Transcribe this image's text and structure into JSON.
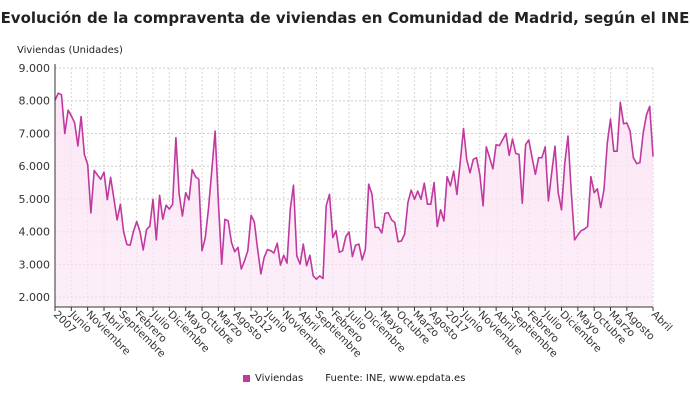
{
  "chart_data": {
    "type": "area",
    "title": "Evolución de la compraventa de viviendas en Comunidad de Madrid, según el INE",
    "ylabel": "Viviendas (Unidades)",
    "xlabel": "",
    "ylim": [
      1700,
      9000
    ],
    "y_ticks": [
      "2.000",
      "3.000",
      "4.000",
      "5.000",
      "6.000",
      "7.000",
      "8.000",
      "9.000"
    ],
    "y_tick_values": [
      2000,
      3000,
      4000,
      5000,
      6000,
      7000,
      8000,
      9000
    ],
    "x_tick_labels": [
      "2007",
      "Junio",
      "Noviembre",
      "Abril",
      "Septiembre",
      "Febrero",
      "Julio",
      "Diciembre",
      "Mayo",
      "Octubre",
      "Marzo",
      "Agosto",
      "2012",
      "Junio",
      "Noviembre",
      "Abril",
      "Septiembre",
      "Febrero",
      "Julio",
      "Diciembre",
      "Mayo",
      "Octubre",
      "Marzo",
      "Agosto",
      "2017",
      "Junio",
      "Noviembre",
      "Abril",
      "Septiembre",
      "Febrero",
      "Julio",
      "Diciembre",
      "Mayo",
      "Octubre",
      "Marzo",
      "Agosto",
      "Abril"
    ],
    "x_range": [
      "2007-01",
      "2022-04"
    ],
    "grid": true,
    "legend_position": "bottom",
    "series": [
      {
        "name": "Viviendas",
        "color": "#c0399f",
        "fill": "#fbe4f4",
        "values": [
          8020,
          8230,
          8180,
          7000,
          7710,
          7540,
          7330,
          6620,
          7520,
          6360,
          6050,
          4570,
          5870,
          5730,
          5600,
          5820,
          4980,
          5660,
          5030,
          4360,
          4840,
          4000,
          3610,
          3590,
          4000,
          4310,
          4000,
          3440,
          4060,
          4170,
          4990,
          3750,
          5110,
          4380,
          4810,
          4690,
          4840,
          6870,
          5140,
          4480,
          5190,
          4970,
          5900,
          5680,
          5600,
          3420,
          3820,
          4740,
          5900,
          7070,
          4890,
          3010,
          4380,
          4330,
          3670,
          3390,
          3520,
          2860,
          3110,
          3420,
          4500,
          4300,
          3470,
          2710,
          3210,
          3450,
          3420,
          3350,
          3650,
          2980,
          3280,
          3040,
          4690,
          5420,
          3260,
          3010,
          3620,
          2960,
          3280,
          2650,
          2550,
          2650,
          2570,
          4790,
          5140,
          3820,
          4030,
          3370,
          3420,
          3850,
          3990,
          3240,
          3590,
          3620,
          3140,
          3470,
          5450,
          5140,
          4130,
          4130,
          3960,
          4560,
          4580,
          4360,
          4280,
          3690,
          3720,
          3930,
          4890,
          5270,
          4990,
          5240,
          4990,
          5480,
          4840,
          4840,
          5500,
          4160,
          4670,
          4330,
          5680,
          5400,
          5850,
          5140,
          6110,
          7150,
          6210,
          5800,
          6210,
          6260,
          5750,
          4790,
          6590,
          6260,
          5920,
          6660,
          6630,
          6810,
          7000,
          6330,
          6830,
          6390,
          6360,
          4870,
          6660,
          6800,
          6260,
          5750,
          6260,
          6260,
          6590,
          4940,
          5800,
          6610,
          5190,
          4670,
          6100,
          6920,
          5200,
          3750,
          3900,
          4030,
          4080,
          4160,
          5680,
          5190,
          5310,
          4740,
          5290,
          6710,
          7440,
          6460,
          6460,
          7950,
          7300,
          7320,
          7070,
          6260,
          6080,
          6110,
          7020,
          7570,
          7830,
          6310
        ]
      }
    ]
  },
  "legend": {
    "series_label": "Viviendas",
    "source": "Fuente: INE, www.epdata.es"
  }
}
